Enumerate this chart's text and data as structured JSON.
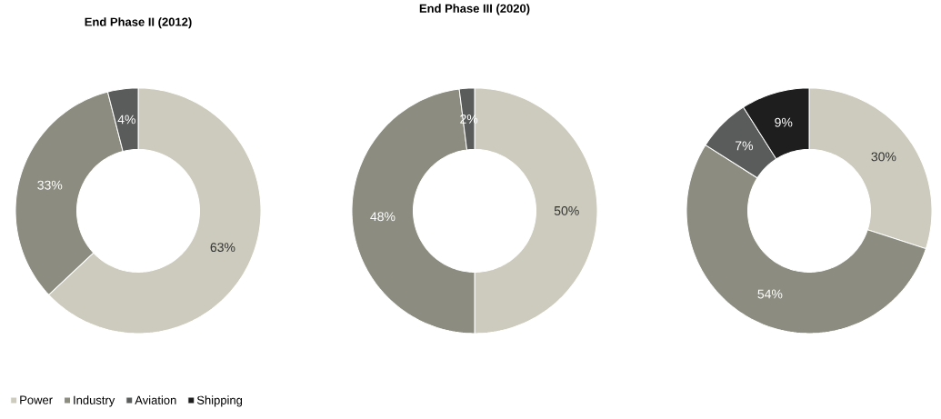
{
  "chart_data": [
    {
      "type": "donut",
      "title": "End Phase II (2012)",
      "categories": [
        null,
        null,
        null
      ],
      "values": [
        63,
        33,
        4
      ],
      "colors": [
        "#cccbbd",
        "#8c8c80",
        "#5a5b5b"
      ],
      "value_labels": [
        "63%",
        "33%",
        "4%"
      ]
    },
    {
      "type": "donut",
      "title": "End Phase III (2020)",
      "categories": [
        null,
        null,
        null
      ],
      "values": [
        50,
        48,
        2
      ],
      "colors": [
        "#cccbbd",
        "#8c8c80",
        "#5a5b5b"
      ],
      "value_labels": [
        "50%",
        "48%",
        "2%"
      ]
    },
    {
      "type": "donut",
      "categories": [
        "Power",
        "Industry",
        "Aviation",
        "Shipping"
      ],
      "values": [
        30,
        54,
        7,
        9
      ],
      "colors": [
        "#cccbbd",
        "#8c8c80",
        "#5a5b5b",
        "#1e1e1e"
      ],
      "value_labels": [
        "30%",
        "54%",
        "7%",
        "9%"
      ],
      "legend": "bottom"
    }
  ]
}
